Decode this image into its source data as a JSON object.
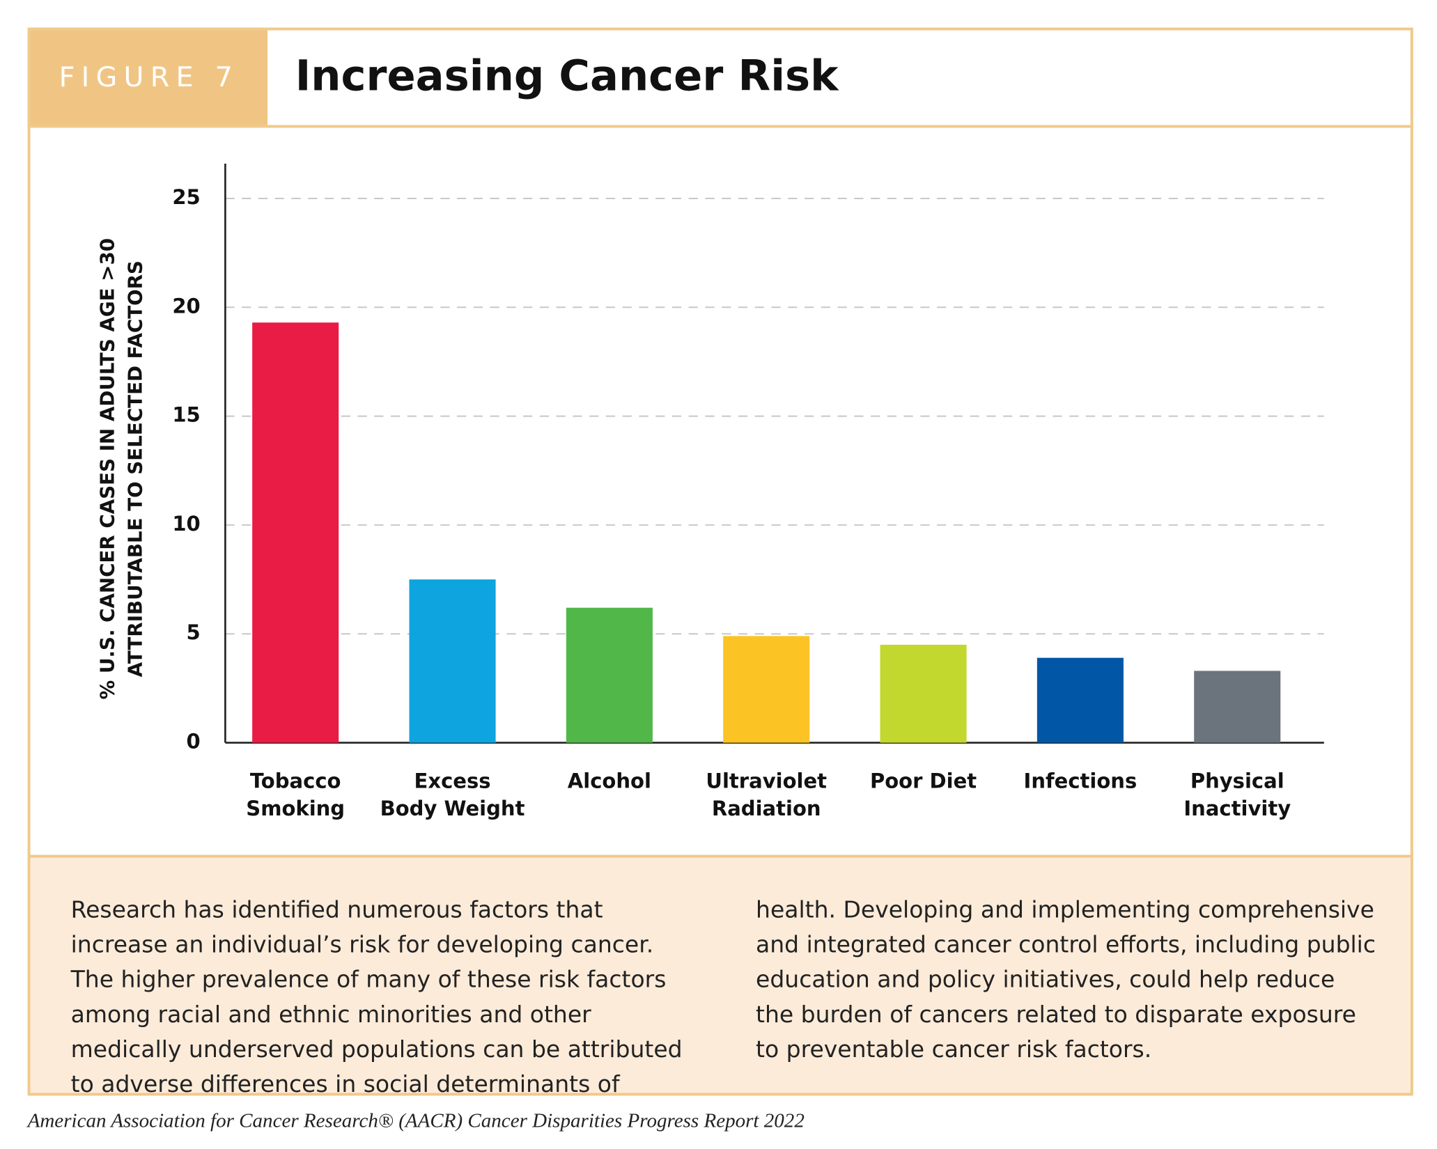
{
  "figure_label": "FIGURE 7",
  "chart_data": {
    "type": "bar",
    "title": "Increasing Cancer Risk",
    "y_label": [
      "% U.S. CANCER CASES IN ADULTS AGE >30",
      "ATTRIBUTABLE TO SELECTED FACTORS"
    ],
    "categories": [
      [
        "Tobacco",
        "Smoking"
      ],
      [
        "Excess",
        "Body Weight"
      ],
      [
        "Alcohol"
      ],
      [
        "Ultraviolet",
        "Radiation"
      ],
      [
        "Poor Diet"
      ],
      [
        "Infections"
      ],
      [
        "Physical",
        "Inactivity"
      ]
    ],
    "values": [
      19.3,
      7.5,
      6.2,
      4.9,
      4.5,
      3.9,
      3.3
    ],
    "colors": [
      "#e81c45",
      "#0ea4e0",
      "#50b748",
      "#fcc324",
      "#c2d82e",
      "#0157a6",
      "#6b747c"
    ],
    "ylim": [
      0,
      26.6
    ],
    "yticks": [
      0,
      5,
      10,
      15,
      20,
      25
    ],
    "grid": true
  },
  "body_text": "Research has identified numerous factors that increase an individual’s risk for developing cancer. The higher prevalence of many of these risk factors among racial and ethnic minorities and other medically underserved populations can be attributed to adverse differences in social determinants of health. Developing and implementing comprehensive and integrated cancer control efforts, including public education and policy initiatives, could help reduce the burden of cancers related to disparate exposure to preventable cancer risk factors.",
  "footer": "American Association for Cancer Research® (AACR) Cancer Disparities Progress Report 2022"
}
